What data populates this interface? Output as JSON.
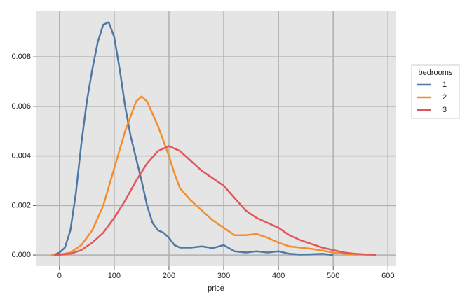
{
  "chart_data": {
    "type": "line",
    "x_label": "price",
    "xlim": [
      -42,
      615
    ],
    "ylim": [
      -0.00045,
      0.00987
    ],
    "xticks": [
      0,
      100,
      200,
      300,
      400,
      500,
      600
    ],
    "yticks": [
      {
        "value": 0,
        "label": "0.000"
      },
      {
        "value": 0.002,
        "label": "0.002"
      },
      {
        "value": 0.004,
        "label": "0.004"
      },
      {
        "value": 0.006,
        "label": "0.006"
      },
      {
        "value": 0.008,
        "label": "0.008"
      }
    ],
    "grid": true,
    "legend": "right",
    "legend_title": "bedrooms",
    "series": [
      {
        "name": "1",
        "color": "#4e79a7",
        "x": [
          -10,
          0,
          10,
          20,
          30,
          40,
          50,
          60,
          70,
          80,
          90,
          100,
          110,
          120,
          130,
          140,
          150,
          160,
          170,
          180,
          190,
          200,
          210,
          220,
          240,
          260,
          280,
          300,
          320,
          340,
          360,
          380,
          400,
          420,
          440,
          460,
          480,
          500
        ],
        "values": [
          0,
          0.0001,
          0.0003,
          0.001,
          0.0025,
          0.0045,
          0.0062,
          0.0075,
          0.0086,
          0.0093,
          0.0094,
          0.0088,
          0.0075,
          0.006,
          0.0048,
          0.0039,
          0.003,
          0.002,
          0.0013,
          0.001,
          0.0009,
          0.0007,
          0.0004,
          0.0003,
          0.0003,
          0.00035,
          0.00028,
          0.0004,
          0.00015,
          0.0001,
          0.00015,
          0.0001,
          0.00015,
          5e-05,
          2e-05,
          3e-05,
          5e-05,
          0
        ]
      },
      {
        "name": "2",
        "color": "#f28e2b",
        "x": [
          -15,
          0,
          20,
          40,
          60,
          80,
          100,
          120,
          140,
          150,
          160,
          180,
          200,
          210,
          220,
          240,
          260,
          280,
          300,
          320,
          340,
          360,
          380,
          400,
          420,
          440,
          460,
          480,
          500,
          520,
          545
        ],
        "values": [
          0,
          2e-05,
          0.0001,
          0.0004,
          0.001,
          0.002,
          0.0035,
          0.005,
          0.0062,
          0.0064,
          0.0062,
          0.0052,
          0.004,
          0.0033,
          0.0027,
          0.0022,
          0.0018,
          0.0014,
          0.0011,
          0.0008,
          0.0008,
          0.00085,
          0.0007,
          0.0005,
          0.00035,
          0.0003,
          0.00025,
          0.00018,
          0.0001,
          5e-05,
          2e-05
        ]
      },
      {
        "name": "3",
        "color": "#e15759",
        "x": [
          -10,
          0,
          20,
          40,
          60,
          80,
          100,
          120,
          140,
          160,
          180,
          200,
          220,
          240,
          260,
          280,
          300,
          320,
          340,
          360,
          380,
          400,
          420,
          440,
          460,
          480,
          500,
          520,
          540,
          560,
          578
        ],
        "values": [
          0,
          1e-05,
          5e-05,
          0.0002,
          0.0005,
          0.0009,
          0.0015,
          0.0022,
          0.003,
          0.0037,
          0.0042,
          0.0044,
          0.0042,
          0.0038,
          0.0034,
          0.0031,
          0.0028,
          0.0023,
          0.0018,
          0.0015,
          0.0013,
          0.0011,
          0.0008,
          0.0006,
          0.00045,
          0.0003,
          0.0002,
          0.0001,
          5e-05,
          2e-05,
          1e-05
        ]
      }
    ]
  }
}
